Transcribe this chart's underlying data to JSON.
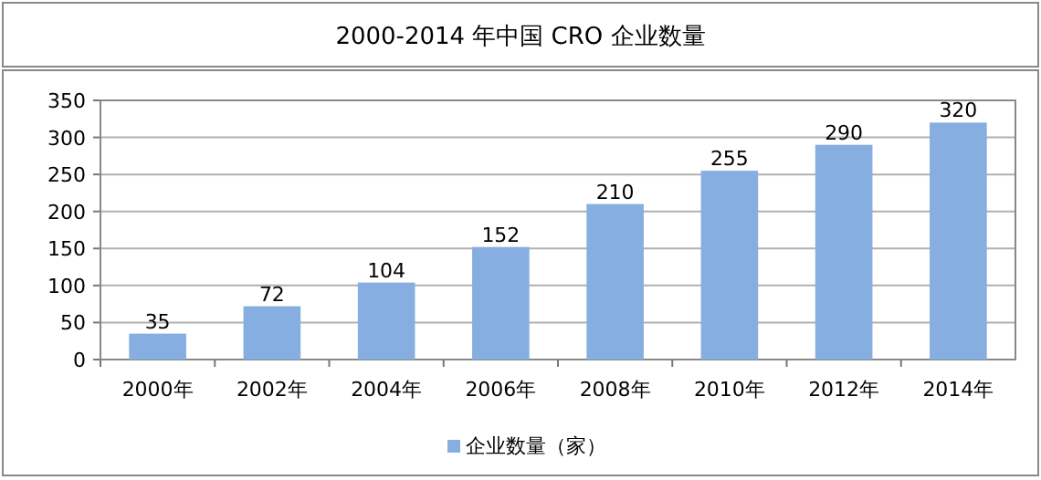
{
  "chart_data": {
    "type": "bar",
    "title": "2000-2014 年中国 CRO 企业数量",
    "categories": [
      "2000年",
      "2002年",
      "2004年",
      "2006年",
      "2008年",
      "2010年",
      "2012年",
      "2014年"
    ],
    "series": [
      {
        "name": "企业数量（家）",
        "color": "#86aee0",
        "values": [
          35,
          72,
          104,
          152,
          210,
          255,
          290,
          320
        ]
      }
    ],
    "ylim": [
      0,
      350
    ],
    "yticks": [
      0,
      50,
      100,
      150,
      200,
      250,
      300,
      350
    ],
    "grid": "y",
    "legend": "bottom",
    "data_labels": true
  }
}
